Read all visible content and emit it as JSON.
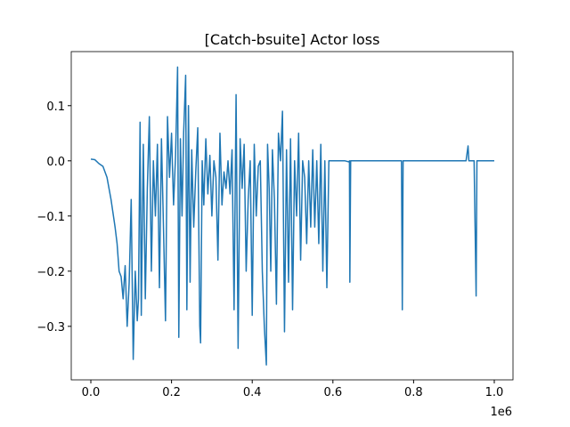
{
  "chart_data": {
    "type": "line",
    "title": "[Catch-bsuite] Actor loss",
    "x_offset_label": "1e6",
    "color": "#1f77b4",
    "xlim": [
      -48600,
      1046400
    ],
    "ylim": [
      -0.397,
      0.198
    ],
    "xticks": [
      {
        "value": 0,
        "label": "0.0"
      },
      {
        "value": 200000,
        "label": "0.2"
      },
      {
        "value": 400000,
        "label": "0.4"
      },
      {
        "value": 600000,
        "label": "0.6"
      },
      {
        "value": 800000,
        "label": "0.8"
      },
      {
        "value": 1000000,
        "label": "1.0"
      }
    ],
    "yticks": [
      {
        "value": -0.3,
        "label": "−0.3"
      },
      {
        "value": -0.2,
        "label": "−0.2"
      },
      {
        "value": -0.1,
        "label": "−0.1"
      },
      {
        "value": 0,
        "label": "0.0"
      },
      {
        "value": 0.1,
        "label": "0.1"
      }
    ],
    "x": [
      0,
      10000,
      20000,
      30000,
      40000,
      50000,
      60000,
      65000,
      70000,
      75000,
      80000,
      85000,
      90000,
      95000,
      100000,
      105000,
      110000,
      115000,
      118000,
      122000,
      125000,
      130000,
      135000,
      140000,
      145000,
      150000,
      155000,
      160000,
      165000,
      170000,
      175000,
      180000,
      185000,
      190000,
      195000,
      200000,
      205000,
      210000,
      215000,
      218000,
      222000,
      226000,
      230000,
      235000,
      238000,
      242000,
      246000,
      250000,
      255000,
      260000,
      265000,
      270000,
      272000,
      276000,
      280000,
      285000,
      290000,
      295000,
      300000,
      305000,
      310000,
      315000,
      320000,
      325000,
      330000,
      335000,
      340000,
      345000,
      350000,
      355000,
      360000,
      365000,
      370000,
      375000,
      380000,
      385000,
      390000,
      395000,
      400000,
      405000,
      410000,
      415000,
      420000,
      425000,
      430000,
      435000,
      438000,
      442000,
      446000,
      450000,
      455000,
      460000,
      465000,
      470000,
      475000,
      480000,
      485000,
      490000,
      495000,
      500000,
      505000,
      510000,
      515000,
      520000,
      525000,
      530000,
      535000,
      540000,
      545000,
      550000,
      555000,
      560000,
      565000,
      570000,
      575000,
      580000,
      585000,
      590000,
      630000,
      640000,
      641000,
      642000,
      644000,
      770000,
      772000,
      774000,
      930000,
      935000,
      937000,
      950000,
      955000,
      957000,
      1000000
    ],
    "values": [
      0.003,
      0.002,
      -0.005,
      -0.01,
      -0.03,
      -0.07,
      -0.12,
      -0.15,
      -0.2,
      -0.21,
      -0.25,
      -0.19,
      -0.3,
      -0.22,
      -0.07,
      -0.36,
      -0.2,
      -0.29,
      -0.25,
      0.07,
      -0.28,
      0.03,
      -0.25,
      -0.05,
      0.08,
      -0.2,
      0.0,
      -0.1,
      0.03,
      -0.23,
      0.04,
      -0.12,
      -0.29,
      0.08,
      -0.03,
      0.05,
      -0.08,
      0.01,
      0.17,
      -0.32,
      0.04,
      -0.1,
      0.05,
      0.155,
      -0.27,
      0.1,
      -0.22,
      0.02,
      -0.12,
      -0.02,
      0.06,
      -0.3,
      -0.33,
      0.0,
      -0.08,
      0.04,
      -0.06,
      0.01,
      -0.1,
      0.0,
      -0.03,
      -0.18,
      0.05,
      -0.08,
      -0.02,
      -0.05,
      0.0,
      -0.06,
      0.02,
      -0.27,
      0.12,
      -0.34,
      0.04,
      -0.05,
      0.03,
      -0.2,
      -0.07,
      0.0,
      -0.28,
      0.03,
      -0.1,
      -0.01,
      0.0,
      -0.2,
      -0.3,
      -0.37,
      0.03,
      -0.05,
      -0.2,
      0.02,
      -0.07,
      -0.26,
      0.05,
      0.0,
      0.09,
      -0.31,
      0.02,
      -0.22,
      0.04,
      -0.27,
      0.0,
      -0.1,
      0.05,
      -0.18,
      0.0,
      -0.03,
      -0.15,
      0.0,
      -0.12,
      0.02,
      -0.12,
      0.0,
      -0.15,
      0.03,
      -0.2,
      0.0,
      -0.23,
      0.0,
      0.0,
      -0.002,
      0.0,
      -0.22,
      0.0,
      0.0,
      -0.27,
      0.0,
      0.0,
      0.027,
      0.0,
      0.0,
      -0.245,
      0.0,
      0.0
    ]
  }
}
